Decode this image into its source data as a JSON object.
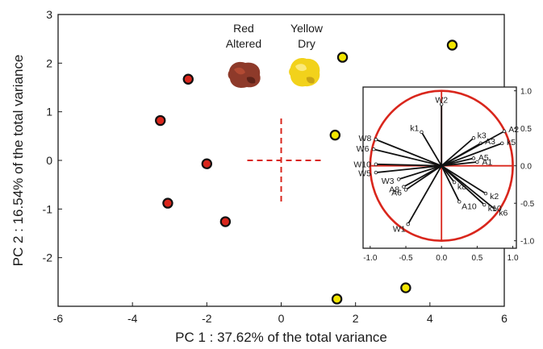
{
  "chart_data": [
    {
      "type": "scatter",
      "xlabel": "PC 1 : 37.62% of the total variance",
      "ylabel": "PC 2 : 16.54% of the total variance",
      "xlim": [
        -6,
        6
      ],
      "ylim": [
        -3,
        3
      ],
      "x_ticks": [
        "-6",
        "-4",
        "-2",
        "0",
        "2",
        "4",
        "6"
      ],
      "y_ticks": [
        "3",
        "2",
        "1",
        "0",
        "-1",
        "-2"
      ],
      "series": [
        {
          "name": "Red Altered",
          "color": "#d9261c",
          "points": [
            {
              "x": -2.5,
              "y": 1.67
            },
            {
              "x": -3.25,
              "y": 0.82
            },
            {
              "x": -2.0,
              "y": -0.07
            },
            {
              "x": -3.05,
              "y": -0.88
            },
            {
              "x": -1.5,
              "y": -1.26
            }
          ]
        },
        {
          "name": "Yellow Dry",
          "color": "#f2e600",
          "points": [
            {
              "x": 1.65,
              "y": 2.12
            },
            {
              "x": 4.6,
              "y": 2.37
            },
            {
              "x": 1.45,
              "y": 0.52
            },
            {
              "x": 3.35,
              "y": -2.62
            },
            {
              "x": 1.5,
              "y": -2.85
            }
          ]
        }
      ],
      "legend_labels": [
        {
          "name": "Red Altered",
          "lines": [
            "Red",
            "Altered"
          ],
          "sample_color": "#8e3a2a"
        },
        {
          "name": "Yellow Dry",
          "lines": [
            "Yellow",
            "Dry"
          ],
          "sample_color": "#f2d21b"
        }
      ],
      "reference_cross": {
        "x": 0,
        "y": 0,
        "color": "#d9261c",
        "style": "dashed"
      }
    },
    {
      "type": "scatter",
      "subtype": "loading-plot",
      "xlim": [
        -1.1,
        1.05
      ],
      "ylim": [
        -1.1,
        1.05
      ],
      "x_ticks": [
        "-1.0",
        "-0.5",
        "0.0",
        "0.5",
        "1.0"
      ],
      "y_ticks": [
        "1.0",
        "0.5",
        "0.0",
        "-0.5",
        "-1.0"
      ],
      "circle": {
        "radius": 1,
        "color": "#d9261c"
      },
      "variables": [
        {
          "name": "W2",
          "x": 0.0,
          "y": 0.82
        },
        {
          "name": "k1",
          "x": -0.28,
          "y": 0.45
        },
        {
          "name": "k3",
          "x": 0.45,
          "y": 0.37
        },
        {
          "name": "A3",
          "x": 0.55,
          "y": 0.3
        },
        {
          "name": "A2",
          "x": 0.88,
          "y": 0.46
        },
        {
          "name": "k5",
          "x": 0.85,
          "y": 0.3
        },
        {
          "name": "A5",
          "x": 0.45,
          "y": 0.1
        },
        {
          "name": "A1",
          "x": 0.5,
          "y": 0.05
        },
        {
          "name": "W8",
          "x": -0.92,
          "y": 0.35
        },
        {
          "name": "W6",
          "x": -0.95,
          "y": 0.22
        },
        {
          "name": "W10",
          "x": -0.92,
          "y": 0.02
        },
        {
          "name": "W5",
          "x": -0.92,
          "y": -0.09
        },
        {
          "name": "W3",
          "x": -0.6,
          "y": -0.18
        },
        {
          "name": "A8",
          "x": -0.53,
          "y": -0.28
        },
        {
          "name": "A6",
          "x": -0.5,
          "y": -0.32
        },
        {
          "name": "k8",
          "x": 0.18,
          "y": -0.22
        },
        {
          "name": "k2",
          "x": 0.62,
          "y": -0.37
        },
        {
          "name": "k6",
          "x": 0.75,
          "y": -0.58
        },
        {
          "name": "k10",
          "x": 0.6,
          "y": -0.52
        },
        {
          "name": "A10",
          "x": 0.25,
          "y": -0.48
        },
        {
          "name": "W1",
          "x": -0.47,
          "y": -0.78
        }
      ]
    }
  ]
}
